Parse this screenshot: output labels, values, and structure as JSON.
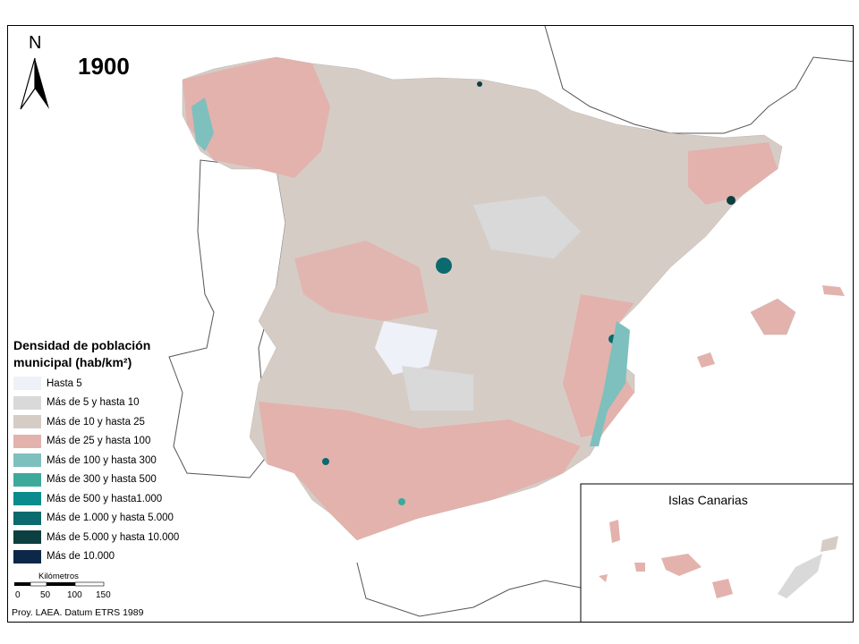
{
  "map": {
    "year": "1900",
    "north_label": "N",
    "legend_title": "Densidad de población municipal (hab/km²)",
    "legend": [
      {
        "label": "Hasta 5",
        "color": "#eef1f8"
      },
      {
        "label": "Más de 5 y hasta 10",
        "color": "#d9d9d9"
      },
      {
        "label": "Más de 10 y hasta 25",
        "color": "#d6ccc6"
      },
      {
        "label": "Más de 25 y hasta 100",
        "color": "#e3b2ad"
      },
      {
        "label": "Más de 100 y hasta 300",
        "color": "#7ec0bd"
      },
      {
        "label": "Más de 300 y hasta 500",
        "color": "#3da99a"
      },
      {
        "label": "Más de 500 y hasta1.000",
        "color": "#0a8c8c"
      },
      {
        "label": "Más de 1.000 y hasta 5.000",
        "color": "#0b6a6e"
      },
      {
        "label": "Más de 5.000 y hasta 10.000",
        "color": "#0c3f40"
      },
      {
        "label": "Más de 10.000",
        "color": "#0c2747"
      }
    ],
    "scale": {
      "title": "Kilómetros",
      "ticks": [
        "0",
        "50",
        "100",
        "150"
      ]
    },
    "projection": "Proy. LAEA. Datum ETRS 1989",
    "inset_title": "Islas Canarias"
  }
}
